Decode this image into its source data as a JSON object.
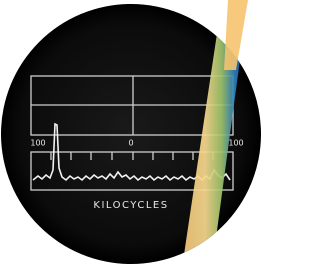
{
  "screen": {
    "scale_labels": [
      "100",
      "0",
      "100"
    ],
    "axis_label": "KILOCYCLES"
  }
}
